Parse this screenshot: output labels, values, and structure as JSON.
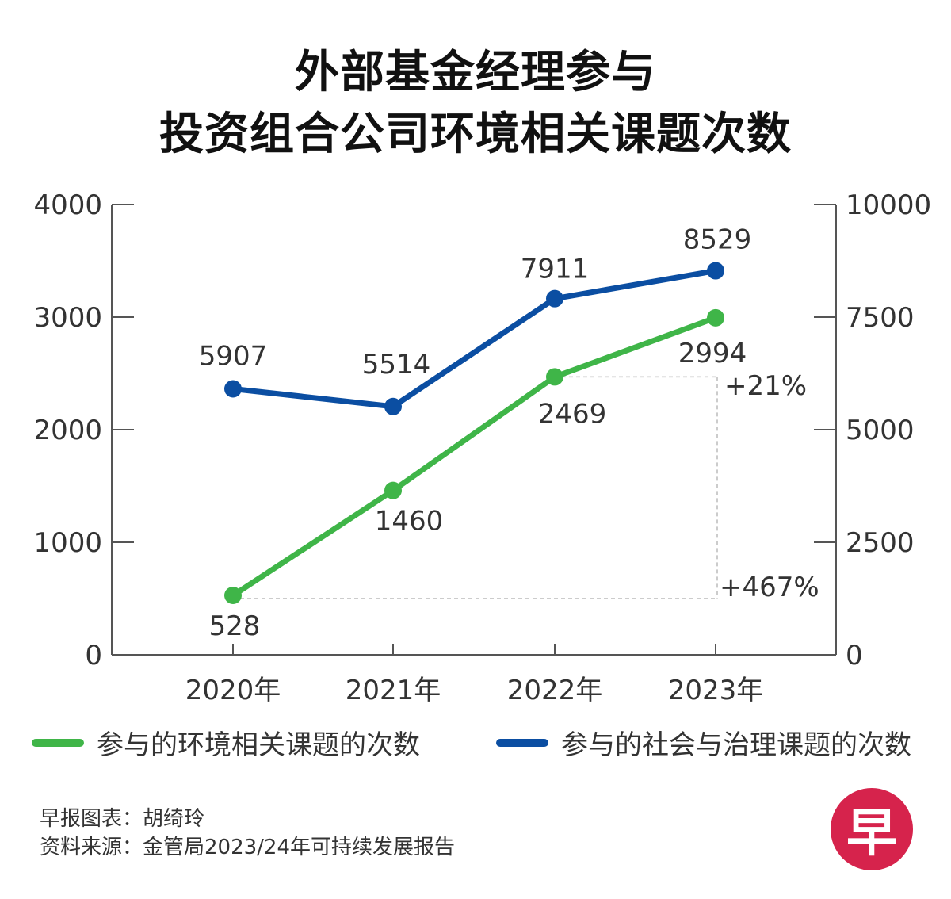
{
  "title_line1": "外部基金经理参与",
  "title_line2": "投资组合公司环境相关课题次数",
  "colors": {
    "green": "#3fb548",
    "blue": "#0b4ea2",
    "axis": "#555555",
    "guide": "#bbbbbb"
  },
  "chart_data": {
    "type": "line",
    "categories": [
      "2020年",
      "2021年",
      "2022年",
      "2023年"
    ],
    "y_left": {
      "min": 0,
      "max": 4000,
      "ticks": [
        "0",
        "1000",
        "2000",
        "3000",
        "4000"
      ]
    },
    "y_right": {
      "min": 0,
      "max": 10000,
      "ticks": [
        "0",
        "2500",
        "5000",
        "7500",
        "10000"
      ]
    },
    "series": [
      {
        "name": "参与的环境相关课题的次数",
        "axis": "left",
        "color": "#3fb548",
        "values": [
          528,
          1460,
          2469,
          2994
        ]
      },
      {
        "name": "参与的社会与治理课题的次数",
        "axis": "right",
        "color": "#0b4ea2",
        "values": [
          5907,
          5514,
          7911,
          8529
        ]
      }
    ],
    "annotations": [
      "+21%",
      "+467%"
    ]
  },
  "credits": {
    "chart_by": "早报图表：胡绮玲",
    "source": "资料来源：金管局2023/24年可持续发展报告"
  },
  "logo": {
    "text": "早"
  }
}
